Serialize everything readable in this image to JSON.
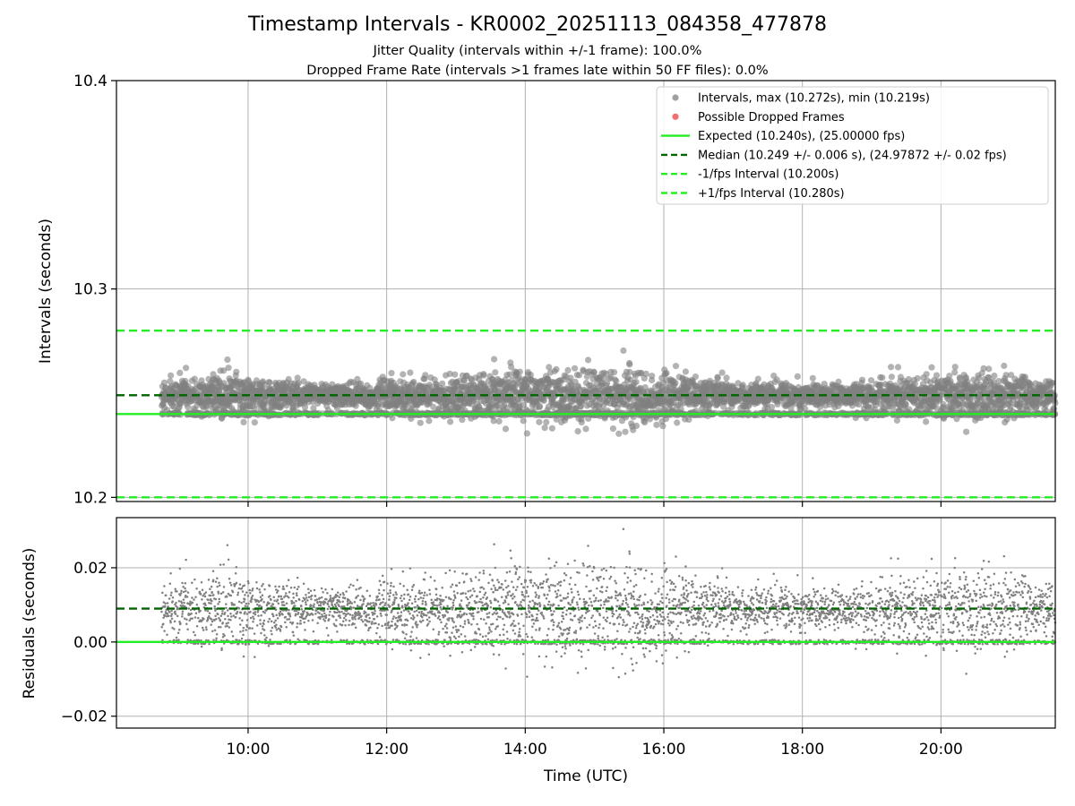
{
  "chart_data": [
    {
      "type": "scatter",
      "title": "Timestamp Intervals - KR0002_20251113_084358_477878",
      "subtitle_1": "Jitter Quality (intervals within +/-1 frame): 100.0%",
      "subtitle_2": "Dropped Frame Rate (intervals >1 frames late within 50 FF files): 0.0%",
      "xlabel": "",
      "ylabel": "Intervals (seconds)",
      "xlim_hours": [
        8.1,
        21.65
      ],
      "ylim": [
        10.198,
        10.4
      ],
      "yticks": [
        10.2,
        10.3,
        10.4
      ],
      "ytick_labels": [
        "10.2",
        "10.3",
        "10.4"
      ],
      "xticks_hours": [
        10,
        12,
        14,
        16,
        18,
        20
      ],
      "grid": true,
      "legend_position": "top-right",
      "x_range_hours": [
        8.75,
        21.65
      ],
      "point_count": 4540,
      "max": 10.272,
      "min": 10.219,
      "median": 10.249,
      "median_std": 0.006,
      "expected": 10.24,
      "minus_interval": 10.2,
      "plus_interval": 10.28,
      "dropped_frames": [],
      "spread_profile": [
        {
          "hour": 8.8,
          "spread": 0.007
        },
        {
          "hour": 9.6,
          "spread": 0.009
        },
        {
          "hour": 10.4,
          "spread": 0.007
        },
        {
          "hour": 11.4,
          "spread": 0.0045
        },
        {
          "hour": 12.6,
          "spread": 0.0085
        },
        {
          "hour": 14.0,
          "spread": 0.011
        },
        {
          "hour": 15.5,
          "spread": 0.013
        },
        {
          "hour": 16.3,
          "spread": 0.009
        },
        {
          "hour": 17.2,
          "spread": 0.005
        },
        {
          "hour": 18.6,
          "spread": 0.005
        },
        {
          "hour": 19.8,
          "spread": 0.009
        },
        {
          "hour": 20.8,
          "spread": 0.01
        },
        {
          "hour": 21.65,
          "spread": 0.007
        }
      ],
      "legend": [
        {
          "label": "Intervals, max (10.272s), min (10.219s)",
          "kind": "marker",
          "color": "#a0a0a0"
        },
        {
          "label": "Possible Dropped Frames",
          "kind": "marker",
          "color": "#f07070"
        },
        {
          "label": "Expected (10.240s), (25.00000 fps)",
          "kind": "solid",
          "color": "#22ee22"
        },
        {
          "label": "Median (10.249 +/- 0.006 s), (24.97872 +/- 0.02 fps)",
          "kind": "dashed",
          "color": "#006400"
        },
        {
          "label": "-1/fps Interval (10.200s)",
          "kind": "dashed",
          "color": "#22ee22"
        },
        {
          "label": "+1/fps Interval (10.280s)",
          "kind": "dashed",
          "color": "#22ee22"
        }
      ]
    },
    {
      "type": "scatter",
      "title": "",
      "xlabel": "Time (UTC)",
      "ylabel": "Residuals (seconds)",
      "xlim_hours": [
        8.1,
        21.65
      ],
      "ylim": [
        -0.0232,
        0.0335
      ],
      "yticks": [
        -0.02,
        0.0,
        0.02
      ],
      "ytick_labels": [
        "−0.02",
        "0.00",
        "0.02"
      ],
      "xticks_hours": [
        10,
        12,
        14,
        16,
        18,
        20
      ],
      "xtick_labels": [
        "10:00",
        "12:00",
        "14:00",
        "16:00",
        "18:00",
        "20:00"
      ],
      "grid": true,
      "residual_zero": 0.0,
      "median_residual": 0.009,
      "point_count": 4540
    }
  ],
  "colors": {
    "points": "#808080",
    "expected": "#22ee22",
    "median": "#006400",
    "interval": "#22ee22",
    "grid": "#b0b0b0"
  }
}
